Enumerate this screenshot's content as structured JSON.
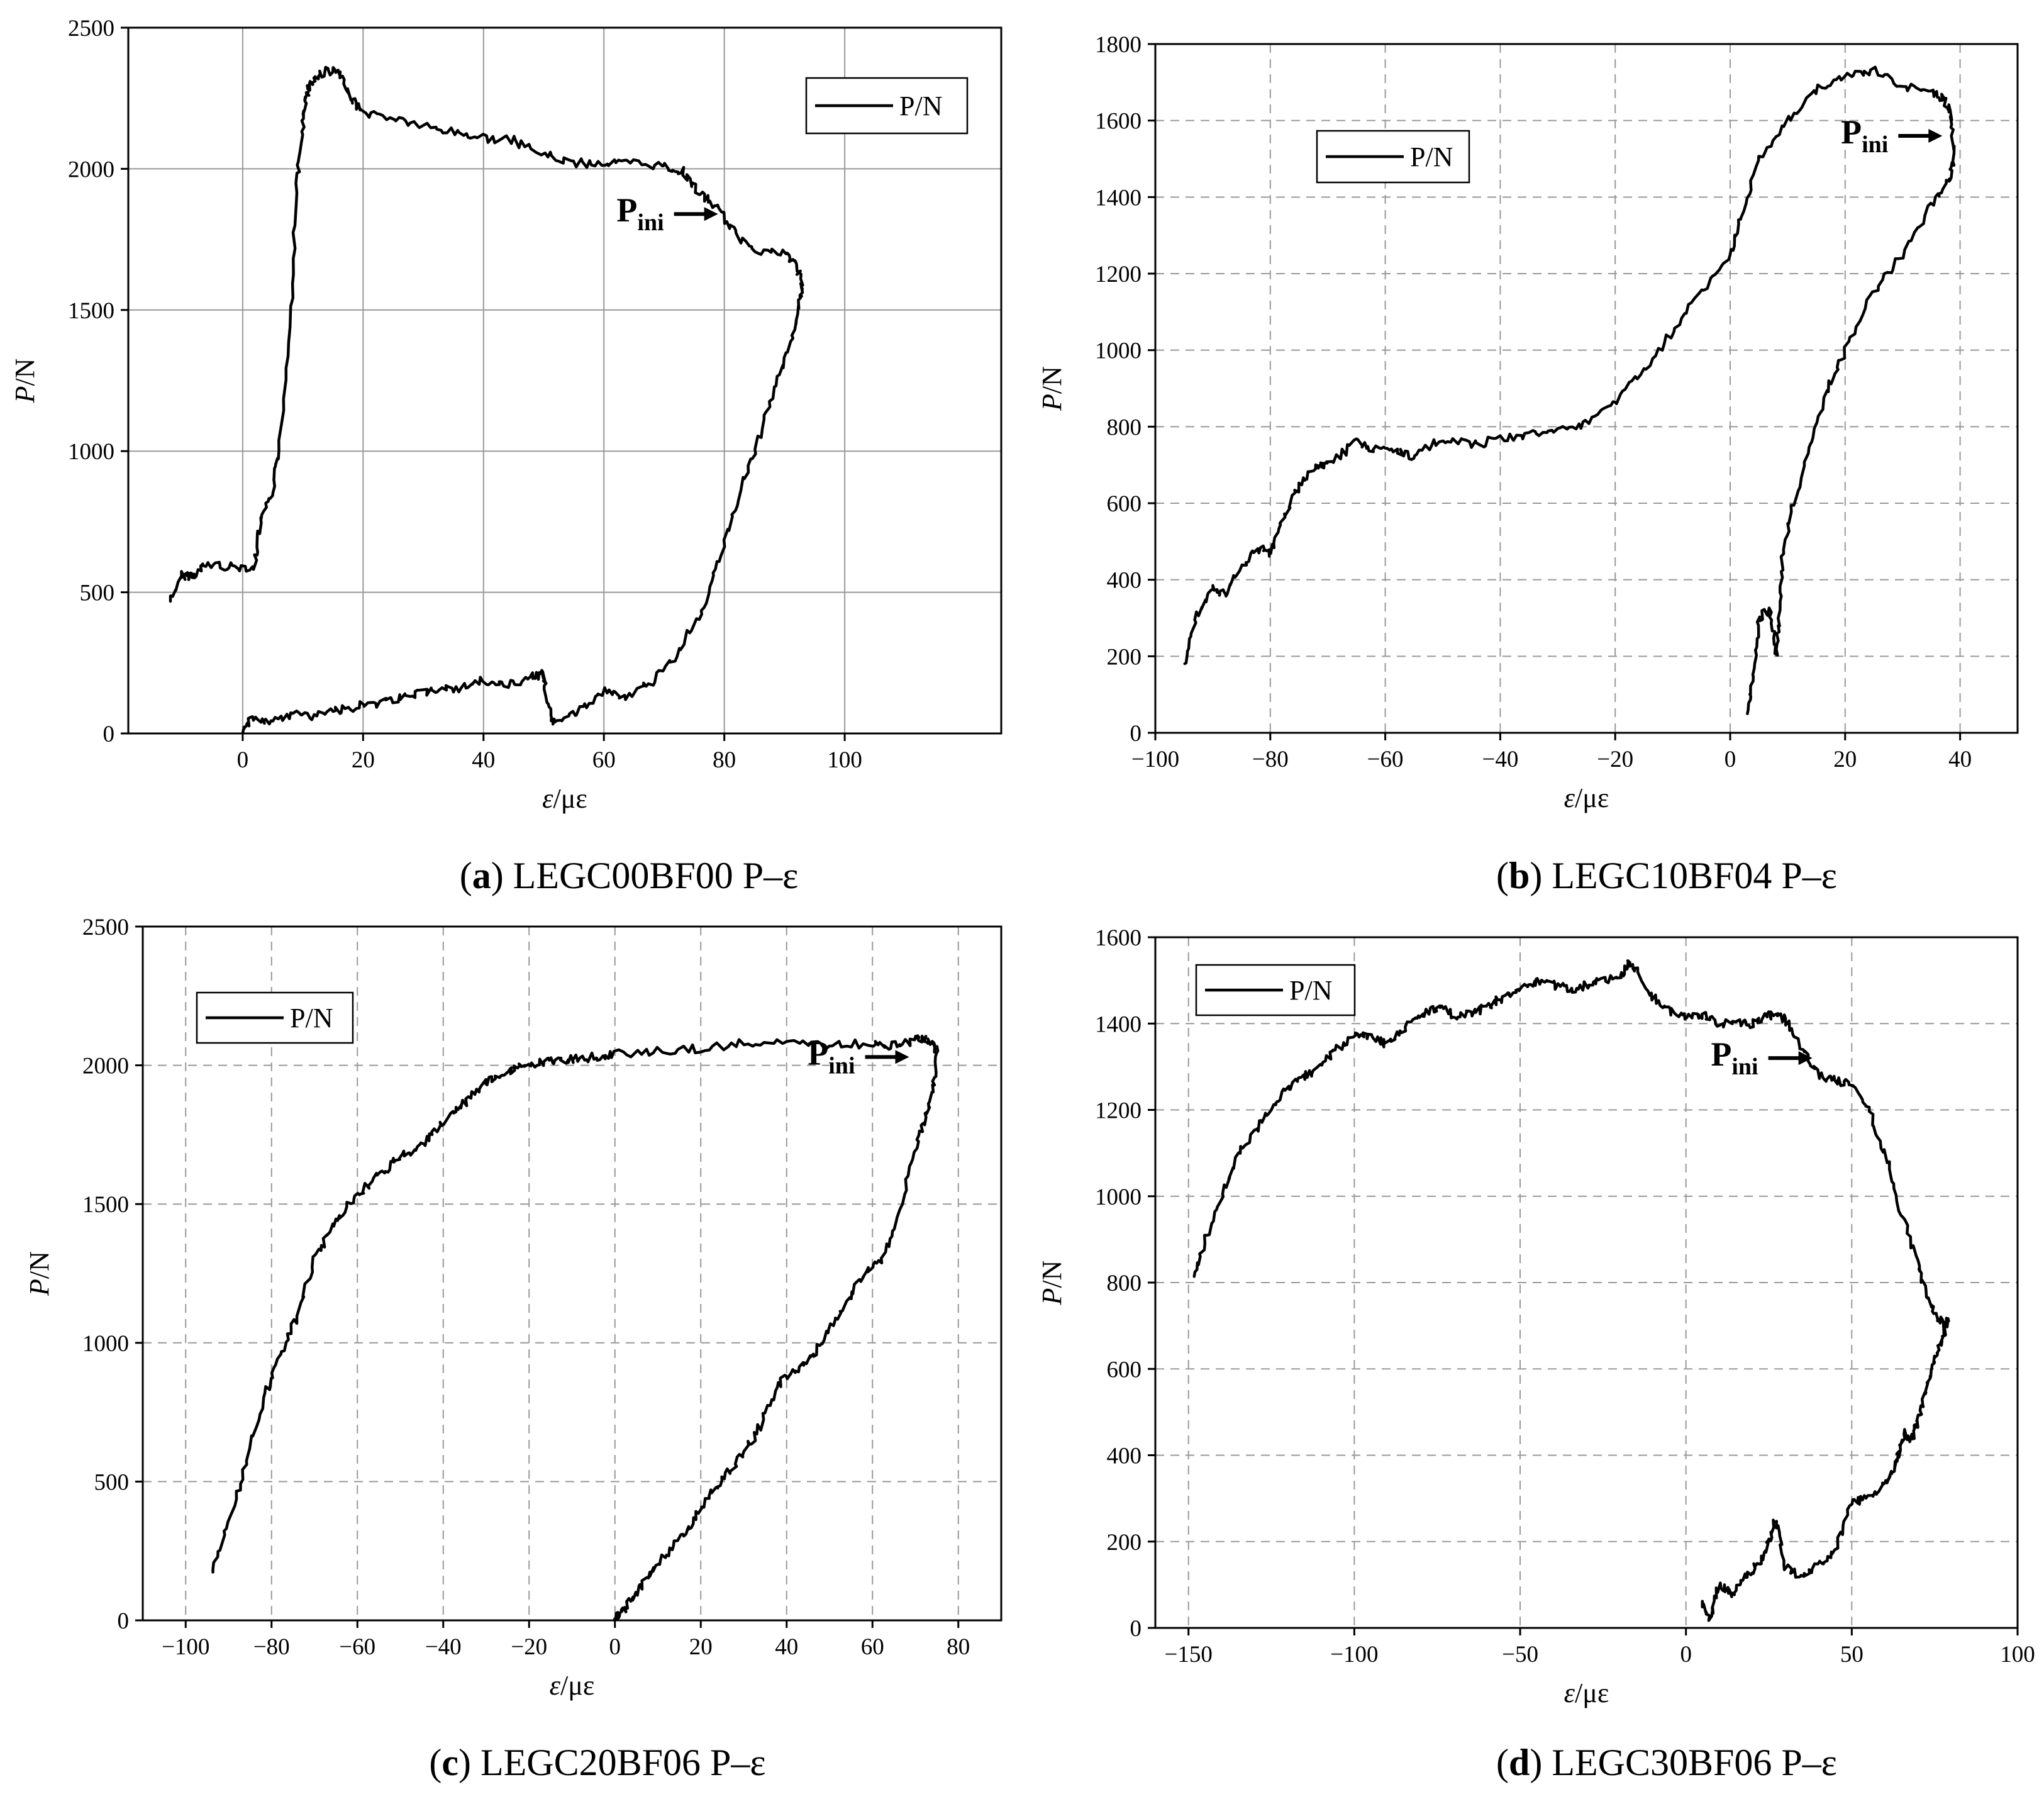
{
  "chart_data": [
    {
      "id": "a",
      "type": "line",
      "title": "",
      "caption": {
        "letter": "a",
        "text": "LEGC00BF00 P–ε"
      },
      "xlabel": {
        "var": "ε",
        "unit": "/με"
      },
      "ylabel": {
        "var": "P",
        "unit": "/N"
      },
      "xlim": [
        -19,
        126
      ],
      "ylim": [
        0,
        2500
      ],
      "xticks": [
        0,
        20,
        40,
        60,
        80,
        100
      ],
      "yticks": [
        0,
        500,
        1000,
        1500,
        2000,
        2500
      ],
      "xtick_labels": [
        "0",
        "20",
        "40",
        "60",
        "80",
        "100"
      ],
      "ytick_labels": [
        "0",
        "500",
        "1000",
        "1500",
        "2000",
        "2500"
      ],
      "grid": "solid",
      "legend": {
        "label": "P/N",
        "position": "top-right"
      },
      "annotation": {
        "main": "P",
        "sub": "ini",
        "x": 80,
        "y": 1840
      },
      "series": [
        {
          "name": "P/N",
          "x": [
            -12,
            -10,
            -8,
            -6,
            -2,
            2,
            3,
            5,
            6,
            8,
            9,
            10,
            10.5,
            11,
            12,
            14,
            16,
            18,
            20,
            25,
            30,
            35,
            40,
            45,
            50,
            55,
            60,
            65,
            70,
            73,
            76,
            79,
            82,
            86,
            90,
            92,
            93,
            92.5,
            91,
            88,
            85,
            82,
            79,
            76,
            72,
            68,
            64,
            60,
            56,
            52,
            50.5,
            50,
            48,
            44,
            40,
            36,
            32,
            28,
            24,
            20,
            16,
            12,
            8,
            4,
            1,
            0
          ],
          "y": [
            470,
            560,
            560,
            600,
            590,
            590,
            750,
            850,
            1000,
            1500,
            1950,
            2150,
            2250,
            2290,
            2320,
            2350,
            2340,
            2250,
            2200,
            2180,
            2150,
            2130,
            2110,
            2100,
            2050,
            2020,
            2020,
            2020,
            2010,
            1990,
            1910,
            1860,
            1760,
            1710,
            1700,
            1660,
            1580,
            1520,
            1380,
            1200,
            1000,
            820,
            600,
            420,
            280,
            180,
            130,
            150,
            80,
            30,
            100,
            210,
            200,
            170,
            190,
            160,
            150,
            140,
            110,
            100,
            80,
            60,
            70,
            40,
            50,
            0
          ]
        }
      ]
    },
    {
      "id": "b",
      "type": "line",
      "title": "",
      "caption": {
        "letter": "b",
        "text": "LEGC10BF04 P–ε"
      },
      "xlabel": {
        "var": "ε",
        "unit": "/με"
      },
      "ylabel": {
        "var": "P",
        "unit": "/N"
      },
      "xlim": [
        -100,
        50
      ],
      "ylim": [
        0,
        1800
      ],
      "xticks": [
        -100,
        -80,
        -60,
        -40,
        -20,
        0,
        20,
        40
      ],
      "yticks": [
        0,
        200,
        400,
        600,
        800,
        1000,
        1200,
        1400,
        1600,
        1800
      ],
      "xtick_labels": [
        "−100",
        "−80",
        "−60",
        "−40",
        "−20",
        "0",
        "20",
        "40"
      ],
      "ytick_labels": [
        "0",
        "200",
        "400",
        "600",
        "800",
        "1000",
        "1200",
        "1400",
        "1600",
        "1800"
      ],
      "grid": "dashed",
      "legend": {
        "label": "P/N",
        "position": "top-left"
      },
      "annotation": {
        "main": "P",
        "sub": "ini",
        "x": 38,
        "y": 1560
      },
      "series": [
        {
          "name": "P/N",
          "x": [
            -95,
            -93,
            -90,
            -88,
            -85,
            -82,
            -80,
            -78,
            -75,
            -72,
            -70,
            -65,
            -62,
            -58,
            -55,
            -50,
            -45,
            -40,
            -35,
            -30,
            -25,
            -20,
            -15,
            -10,
            -5,
            0,
            2,
            5,
            10,
            15,
            20,
            25,
            30,
            35,
            37,
            38.5,
            39,
            38,
            35,
            30,
            25,
            20,
            17,
            14,
            11,
            9,
            8.5,
            8,
            7,
            5,
            4,
            3
          ],
          "y": [
            180,
            300,
            380,
            360,
            430,
            480,
            470,
            550,
            650,
            690,
            700,
            760,
            740,
            740,
            720,
            770,
            750,
            770,
            780,
            790,
            810,
            860,
            950,
            1050,
            1150,
            1250,
            1350,
            1500,
            1600,
            1680,
            1720,
            1730,
            1690,
            1670,
            1660,
            1610,
            1500,
            1440,
            1380,
            1250,
            1150,
            1000,
            900,
            750,
            600,
            450,
            300,
            200,
            320,
            300,
            150,
            50
          ]
        }
      ]
    },
    {
      "id": "c",
      "type": "line",
      "title": "",
      "caption": {
        "letter": "c",
        "text": "LEGC20BF06 P–ε"
      },
      "xlabel": {
        "var": "ε",
        "unit": "/με"
      },
      "ylabel": {
        "var": "P",
        "unit": "/N"
      },
      "xlim": [
        -110,
        90
      ],
      "ylim": [
        0,
        2500
      ],
      "xticks": [
        -100,
        -80,
        -60,
        -40,
        -20,
        0,
        20,
        40,
        60,
        80
      ],
      "yticks": [
        0,
        500,
        1000,
        1500,
        2000,
        2500
      ],
      "xtick_labels": [
        "−100",
        "−80",
        "−60",
        "−40",
        "−20",
        "0",
        "20",
        "40",
        "60",
        "80"
      ],
      "ytick_labels": [
        "0",
        "500",
        "1000",
        "1500",
        "2000",
        "2500"
      ],
      "grid": "dashed",
      "legend": {
        "label": "P/N",
        "position": "top-left"
      },
      "annotation": {
        "main": "P",
        "sub": "ini",
        "x": 70,
        "y": 2030
      },
      "series": [
        {
          "name": "P/N",
          "x": [
            -94,
            -90,
            -86,
            -82,
            -78,
            -74,
            -70,
            -66,
            -62,
            -58,
            -54,
            -50,
            -46,
            -42,
            -38,
            -34,
            -30,
            -26,
            -22,
            -18,
            -14,
            -10,
            -5,
            0,
            10,
            20,
            30,
            40,
            50,
            60,
            65,
            70,
            72,
            74,
            75,
            74,
            72,
            70,
            66,
            62,
            58,
            54,
            50,
            46,
            42,
            38,
            34,
            30,
            26,
            22,
            18,
            14,
            10,
            6,
            3,
            1,
            0
          ],
          "y": [
            170,
            350,
            550,
            800,
            950,
            1100,
            1300,
            1420,
            1500,
            1560,
            1620,
            1670,
            1700,
            1760,
            1820,
            1880,
            1940,
            1970,
            2000,
            2010,
            2020,
            2020,
            2030,
            2040,
            2050,
            2060,
            2080,
            2080,
            2070,
            2080,
            2070,
            2090,
            2100,
            2080,
            2050,
            1900,
            1800,
            1700,
            1450,
            1300,
            1250,
            1150,
            1050,
            950,
            900,
            850,
            700,
            600,
            530,
            450,
            350,
            280,
            200,
            120,
            60,
            20,
            0
          ]
        }
      ]
    },
    {
      "id": "d",
      "type": "line",
      "title": "",
      "caption": {
        "letter": "d",
        "text": "LEGC30BF06 P–ε"
      },
      "xlabel": {
        "var": "ε",
        "unit": "/με"
      },
      "ylabel": {
        "var": "P",
        "unit": "/N"
      },
      "xlim": [
        -160,
        100
      ],
      "ylim": [
        0,
        1600
      ],
      "xticks": [
        -150,
        -100,
        -50,
        0,
        50,
        100
      ],
      "yticks": [
        0,
        200,
        400,
        600,
        800,
        1000,
        1200,
        1400,
        1600
      ],
      "xtick_labels": [
        "−150",
        "−100",
        "−50",
        "0",
        "50",
        "100"
      ],
      "ytick_labels": [
        "0",
        "200",
        "400",
        "600",
        "800",
        "1000",
        "1200",
        "1400",
        "1600"
      ],
      "grid": "dashed",
      "legend": {
        "label": "P/N",
        "position": "top-left"
      },
      "annotation": {
        "main": "P",
        "sub": "ini",
        "x": 40,
        "y": 1320
      },
      "series": [
        {
          "name": "P/N",
          "x": [
            -148,
            -145,
            -140,
            -135,
            -130,
            -125,
            -120,
            -115,
            -110,
            -105,
            -100,
            -95,
            -90,
            -85,
            -80,
            -75,
            -70,
            -65,
            -60,
            -55,
            -50,
            -45,
            -40,
            -35,
            -30,
            -25,
            -20,
            -17,
            -15,
            -10,
            -5,
            0,
            5,
            10,
            15,
            20,
            25,
            30,
            35,
            40,
            45,
            50,
            55,
            60,
            65,
            70,
            73,
            76,
            78,
            79,
            78,
            76,
            74,
            72,
            70,
            68,
            66,
            64,
            62,
            60,
            55,
            50,
            45,
            40,
            35,
            30,
            27,
            25,
            22,
            18,
            14,
            10,
            7,
            5
          ],
          "y": [
            810,
            900,
            1000,
            1100,
            1150,
            1200,
            1250,
            1280,
            1300,
            1340,
            1370,
            1370,
            1350,
            1390,
            1420,
            1440,
            1420,
            1420,
            1440,
            1460,
            1480,
            1500,
            1490,
            1480,
            1490,
            1500,
            1510,
            1540,
            1520,
            1460,
            1430,
            1420,
            1420,
            1400,
            1400,
            1400,
            1420,
            1410,
            1340,
            1280,
            1270,
            1260,
            1200,
            1100,
            960,
            840,
            760,
            720,
            700,
            720,
            680,
            640,
            600,
            540,
            480,
            440,
            450,
            400,
            360,
            330,
            300,
            290,
            180,
            150,
            120,
            140,
            250,
            200,
            150,
            120,
            80,
            100,
            20,
            60
          ]
        }
      ]
    }
  ]
}
